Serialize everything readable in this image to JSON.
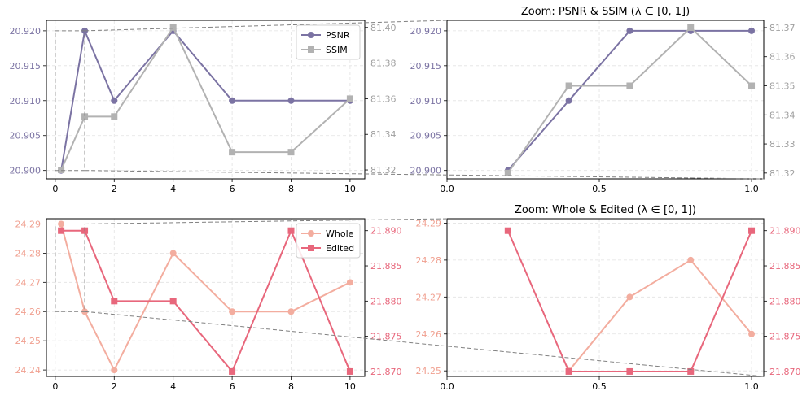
{
  "colors": {
    "psnr": "#7b73a3",
    "ssim": "#b2b2b2",
    "whole": "#f3ad9f",
    "edited": "#e8677c",
    "axis": "#000000"
  },
  "chart_data": [
    {
      "id": "top-left",
      "type": "line",
      "title": "",
      "x": [
        0.2,
        1,
        2,
        4,
        6,
        8,
        10
      ],
      "xlim": [
        -0.3,
        10.5
      ],
      "xticks": [
        0,
        2,
        4,
        6,
        8,
        10
      ],
      "xtick_labels": [
        "0",
        "2",
        "4",
        "6",
        "8",
        "10"
      ],
      "series": [
        {
          "name": "PSNR",
          "axis": "left",
          "marker": "circle",
          "color": "#7b73a3",
          "values": [
            20.9,
            20.92,
            20.91,
            20.92,
            20.91,
            20.91,
            20.91
          ]
        },
        {
          "name": "SSIM",
          "axis": "right",
          "marker": "square",
          "color": "#b2b2b2",
          "values": [
            81.32,
            81.35,
            81.35,
            81.4,
            81.33,
            81.33,
            81.36
          ]
        }
      ],
      "left_axis": {
        "lim": [
          20.8988,
          20.9215
        ],
        "ticks": [
          20.9,
          20.905,
          20.91,
          20.915,
          20.92
        ],
        "labels": [
          "20.900",
          "20.905",
          "20.910",
          "20.915",
          "20.920"
        ],
        "color": "#7b73a3"
      },
      "right_axis": {
        "lim": [
          81.315,
          81.404
        ],
        "ticks": [
          81.32,
          81.34,
          81.36,
          81.38,
          81.4
        ],
        "labels": [
          "81.32",
          "81.34",
          "81.36",
          "81.38",
          "81.40"
        ],
        "color": "#a0a0a0"
      },
      "legend": {
        "position": "top-right",
        "entries": [
          "PSNR",
          "SSIM"
        ]
      },
      "inset_region": {
        "x": [
          0,
          1
        ],
        "y": [
          20.9,
          20.92
        ]
      },
      "grid": true
    },
    {
      "id": "top-right",
      "type": "line",
      "title": "Zoom: PSNR & SSIM (λ ∈ [0, 1])",
      "x": [
        0.2,
        0.4,
        0.6,
        0.8,
        1.0
      ],
      "xlim": [
        0,
        1.04
      ],
      "xticks": [
        0,
        0.5,
        1.0
      ],
      "xtick_labels": [
        "0.0",
        "0.5",
        "1.0"
      ],
      "series": [
        {
          "name": "PSNR",
          "axis": "left",
          "marker": "circle",
          "color": "#7b73a3",
          "values": [
            20.9,
            20.91,
            20.92,
            20.92,
            20.92
          ]
        },
        {
          "name": "SSIM",
          "axis": "right",
          "marker": "square",
          "color": "#b2b2b2",
          "values": [
            81.32,
            81.35,
            81.35,
            81.37,
            81.35
          ]
        }
      ],
      "left_axis": {
        "lim": [
          20.8988,
          20.9215
        ],
        "ticks": [
          20.9,
          20.905,
          20.91,
          20.915,
          20.92
        ],
        "labels": [
          "20.900",
          "20.905",
          "20.910",
          "20.915",
          "20.920"
        ],
        "color": "#7b73a3"
      },
      "right_axis": {
        "lim": [
          81.318,
          81.3725
        ],
        "ticks": [
          81.32,
          81.33,
          81.34,
          81.35,
          81.36,
          81.37
        ],
        "labels": [
          "81.32",
          "81.33",
          "81.34",
          "81.35",
          "81.36",
          "81.37"
        ],
        "color": "#a0a0a0"
      },
      "grid": true
    },
    {
      "id": "bottom-left",
      "type": "line",
      "title": "",
      "x": [
        0.2,
        1,
        2,
        4,
        6,
        8,
        10
      ],
      "xlim": [
        -0.3,
        10.5
      ],
      "xticks": [
        0,
        2,
        4,
        6,
        8,
        10
      ],
      "xtick_labels": [
        "0",
        "2",
        "4",
        "6",
        "8",
        "10"
      ],
      "series": [
        {
          "name": "Whole",
          "axis": "left",
          "marker": "circle",
          "color": "#f3ad9f",
          "values": [
            24.29,
            24.26,
            24.24,
            24.28,
            24.26,
            24.26,
            24.27
          ]
        },
        {
          "name": "Edited",
          "axis": "right",
          "marker": "square",
          "color": "#e8677c",
          "values": [
            21.89,
            21.89,
            21.88,
            21.88,
            21.87,
            21.89,
            21.87
          ]
        }
      ],
      "left_axis": {
        "lim": [
          24.2378,
          24.2918
        ],
        "ticks": [
          24.24,
          24.25,
          24.26,
          24.27,
          24.28,
          24.29
        ],
        "labels": [
          "24.24",
          "24.25",
          "24.26",
          "24.27",
          "24.28",
          "24.29"
        ],
        "color": "#f0a090"
      },
      "right_axis": {
        "lim": [
          21.8693,
          21.8917
        ],
        "ticks": [
          21.87,
          21.875,
          21.88,
          21.885,
          21.89
        ],
        "labels": [
          "21.870",
          "21.875",
          "21.880",
          "21.885",
          "21.890"
        ],
        "color": "#e8677c"
      },
      "legend": {
        "position": "top-right",
        "entries": [
          "Whole",
          "Edited"
        ]
      },
      "inset_region": {
        "x": [
          0,
          1
        ],
        "y": [
          24.26,
          24.29
        ]
      },
      "grid": true
    },
    {
      "id": "bottom-right",
      "type": "line",
      "title": "Zoom: Whole & Edited (λ ∈ [0, 1])",
      "x": [
        0.2,
        0.4,
        0.6,
        0.8,
        1.0
      ],
      "xlim": [
        0,
        1.04
      ],
      "xticks": [
        0,
        0.5,
        1.0
      ],
      "xtick_labels": [
        "0.0",
        "0.5",
        "1.0"
      ],
      "series": [
        {
          "name": "Whole",
          "axis": "left",
          "marker": "circle",
          "color": "#f3ad9f",
          "values": [
            null,
            24.25,
            24.27,
            24.28,
            24.26
          ]
        },
        {
          "name": "Edited",
          "axis": "right",
          "marker": "square",
          "color": "#e8677c",
          "values": [
            21.89,
            21.87,
            21.87,
            21.87,
            21.89
          ]
        }
      ],
      "left_axis": {
        "lim": [
          24.2485,
          24.2912
        ],
        "ticks": [
          24.25,
          24.26,
          24.27,
          24.28,
          24.29
        ],
        "labels": [
          "24.25",
          "24.26",
          "24.27",
          "24.28",
          "24.29"
        ],
        "color": "#f0a090"
      },
      "right_axis": {
        "lim": [
          21.8693,
          21.8917
        ],
        "ticks": [
          21.87,
          21.875,
          21.88,
          21.885,
          21.89
        ],
        "labels": [
          "21.870",
          "21.875",
          "21.880",
          "21.885",
          "21.890"
        ],
        "color": "#e8677c"
      },
      "grid": true
    }
  ]
}
